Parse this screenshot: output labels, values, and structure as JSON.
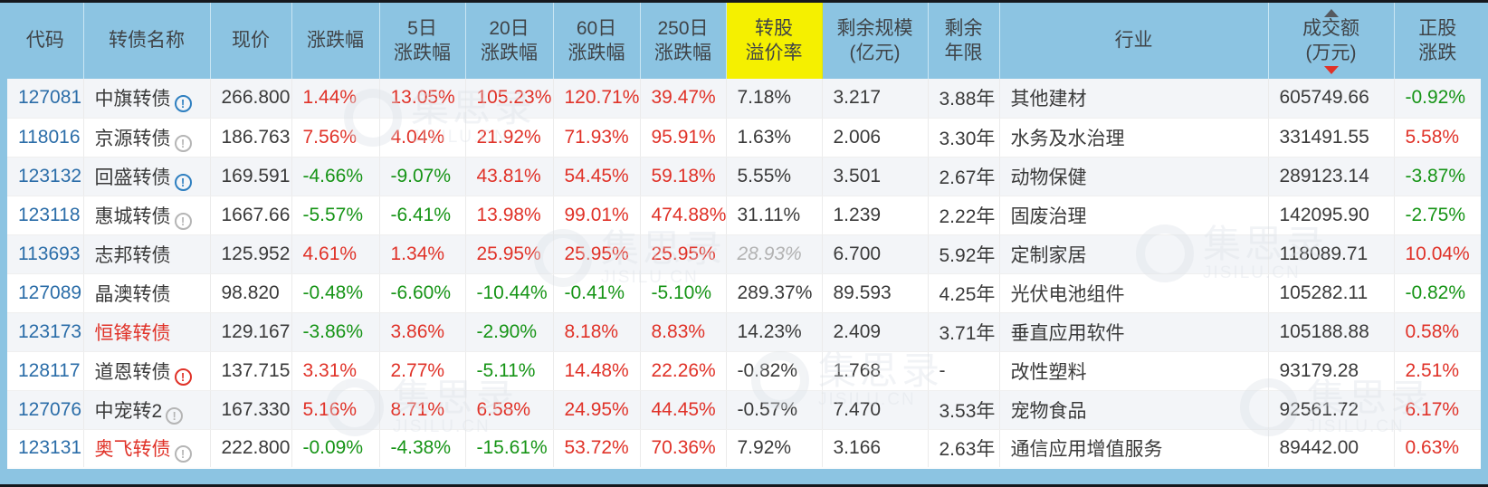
{
  "table": {
    "columns": [
      {
        "key": "code",
        "lines": [
          "代码"
        ]
      },
      {
        "key": "name",
        "lines": [
          "转债名称"
        ]
      },
      {
        "key": "price",
        "lines": [
          "现价"
        ]
      },
      {
        "key": "chg",
        "lines": [
          "涨跌幅"
        ]
      },
      {
        "key": "chg5",
        "lines": [
          "5日",
          "涨跌幅"
        ]
      },
      {
        "key": "chg20",
        "lines": [
          "20日",
          "涨跌幅"
        ]
      },
      {
        "key": "chg60",
        "lines": [
          "60日",
          "涨跌幅"
        ]
      },
      {
        "key": "chg250",
        "lines": [
          "250日",
          "涨跌幅"
        ]
      },
      {
        "key": "premium",
        "lines": [
          "转股",
          "溢价率"
        ],
        "highlight": true
      },
      {
        "key": "size",
        "lines": [
          "剩余规模",
          "(亿元)"
        ]
      },
      {
        "key": "years",
        "lines": [
          "剩余",
          "年限"
        ]
      },
      {
        "key": "industry",
        "lines": [
          "行业"
        ]
      },
      {
        "key": "turnover",
        "lines": [
          "成交额",
          "(万元)"
        ],
        "sort": "desc"
      },
      {
        "key": "stock_chg",
        "lines": [
          "正股",
          "涨跌"
        ]
      }
    ],
    "rows": [
      {
        "code": "127081",
        "name": "中旗转债",
        "icon": "blue",
        "price": "266.800",
        "chg": "1.44%",
        "chg5": "13.05%",
        "chg20": "105.23%",
        "chg60": "120.71%",
        "chg250": "39.47%",
        "premium": "7.18%",
        "size": "3.217",
        "years": "3.88年",
        "industry": "其他建材",
        "turnover": "605749.66",
        "stock_chg": "-0.92%"
      },
      {
        "code": "118016",
        "name": "京源转债",
        "icon": "gray",
        "price": "186.763",
        "chg": "7.56%",
        "chg5": "4.04%",
        "chg20": "21.92%",
        "chg60": "71.93%",
        "chg250": "95.91%",
        "premium": "1.63%",
        "size": "2.006",
        "years": "3.30年",
        "industry": "水务及水治理",
        "turnover": "331491.55",
        "stock_chg": "5.58%"
      },
      {
        "code": "123132",
        "name": "回盛转债",
        "icon": "blue",
        "price": "169.591",
        "chg": "-4.66%",
        "chg5": "-9.07%",
        "chg20": "43.81%",
        "chg60": "54.45%",
        "chg250": "59.18%",
        "premium": "5.55%",
        "size": "3.501",
        "years": "2.67年",
        "industry": "动物保健",
        "turnover": "289123.14",
        "stock_chg": "-3.87%"
      },
      {
        "code": "123118",
        "name": "惠城转债",
        "icon": "gray",
        "price": "1667.66",
        "chg": "-5.57%",
        "chg5": "-6.41%",
        "chg20": "13.98%",
        "chg60": "99.01%",
        "chg250": "474.88%",
        "premium": "31.11%",
        "size": "1.239",
        "years": "2.22年",
        "industry": "固废治理",
        "turnover": "142095.90",
        "stock_chg": "-2.75%"
      },
      {
        "code": "113693",
        "name": "志邦转债",
        "icon": null,
        "price": "125.952",
        "chg": "4.61%",
        "chg5": "1.34%",
        "chg20": "25.95%",
        "chg60": "25.95%",
        "chg250": "25.95%",
        "premium": "28.93%",
        "premium_muted": true,
        "size": "6.700",
        "years": "5.92年",
        "industry": "定制家居",
        "turnover": "118089.71",
        "stock_chg": "10.04%"
      },
      {
        "code": "127089",
        "name": "晶澳转债",
        "icon": null,
        "price": "98.820",
        "chg": "-0.48%",
        "chg5": "-6.60%",
        "chg20": "-10.44%",
        "chg60": "-0.41%",
        "chg250": "-5.10%",
        "premium": "289.37%",
        "size": "89.593",
        "years": "4.25年",
        "industry": "光伏电池组件",
        "turnover": "105282.11",
        "stock_chg": "-0.82%"
      },
      {
        "code": "123173",
        "name": "恒锋转债",
        "name_red": true,
        "icon": null,
        "price": "129.167",
        "chg": "-3.86%",
        "chg5": "3.86%",
        "chg20": "-2.90%",
        "chg60": "8.18%",
        "chg250": "8.83%",
        "premium": "14.23%",
        "size": "2.409",
        "years": "3.71年",
        "industry": "垂直应用软件",
        "turnover": "105188.88",
        "stock_chg": "0.58%"
      },
      {
        "code": "128117",
        "name": "道恩转债",
        "icon": "red",
        "price": "137.715",
        "chg": "3.31%",
        "chg5": "2.77%",
        "chg20": "-5.11%",
        "chg60": "14.48%",
        "chg250": "22.26%",
        "premium": "-0.82%",
        "size": "1.768",
        "years": "-",
        "industry": "改性塑料",
        "turnover": "93179.28",
        "stock_chg": "2.51%"
      },
      {
        "code": "127076",
        "name": "中宠转2",
        "icon": "gray",
        "price": "167.330",
        "chg": "5.16%",
        "chg5": "8.71%",
        "chg20": "6.58%",
        "chg60": "24.95%",
        "chg250": "44.45%",
        "premium": "-0.57%",
        "size": "7.470",
        "years": "3.53年",
        "industry": "宠物食品",
        "turnover": "92561.72",
        "stock_chg": "6.17%"
      },
      {
        "code": "123131",
        "name": "奥飞转债",
        "name_red": true,
        "icon": "gray",
        "price": "222.800",
        "chg": "-0.09%",
        "chg5": "-4.38%",
        "chg20": "-15.61%",
        "chg60": "53.72%",
        "chg250": "70.36%",
        "premium": "7.92%",
        "size": "3.166",
        "years": "2.63年",
        "industry": "通信应用增值服务",
        "turnover": "89442.00",
        "stock_chg": "0.63%"
      }
    ],
    "icon_glyph": "!"
  },
  "watermark": {
    "brand": "集思录",
    "domain": "JISILU.CN"
  },
  "colors": {
    "header_bg": "#8CC4E2",
    "premium_highlight": "#F5F000",
    "up_red": "#E03228",
    "down_green": "#169416",
    "link_blue": "#2B6DA8",
    "muted_gray": "#B2B2B2"
  }
}
